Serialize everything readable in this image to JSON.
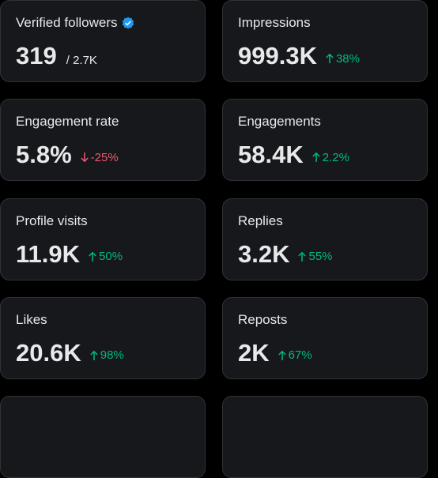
{
  "cards": [
    {
      "label": "Verified followers",
      "value": "319",
      "total": "/ 2.7K"
    },
    {
      "label": "Impressions",
      "value": "999.3K",
      "change": "38%"
    },
    {
      "label": "Engagement rate",
      "value": "5.8%",
      "change": "-25%"
    },
    {
      "label": "Engagements",
      "value": "58.4K",
      "change": "2.2%"
    },
    {
      "label": "Profile visits",
      "value": "11.9K",
      "change": "50%"
    },
    {
      "label": "Replies",
      "value": "3.2K",
      "change": "55%"
    },
    {
      "label": "Likes",
      "value": "20.6K",
      "change": "98%"
    },
    {
      "label": "Reposts",
      "value": "2K",
      "change": "67%"
    }
  ]
}
